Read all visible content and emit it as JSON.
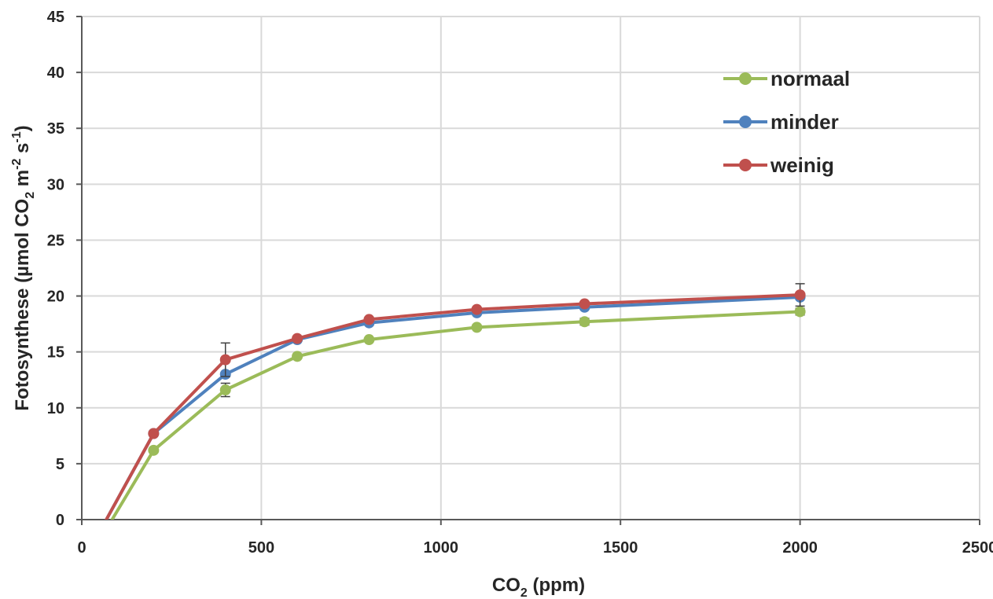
{
  "chart_data": {
    "type": "line",
    "xlabel": "CO",
    "xlabel_sub": "2",
    "xlabel_rest": " (ppm)",
    "ylabel_parts": [
      {
        "t": "Fotosynthese (µmol CO",
        "s": "n"
      },
      {
        "t": "2",
        "s": "sub"
      },
      {
        "t": " m",
        "s": "n"
      },
      {
        "t": "-2",
        "s": "sup"
      },
      {
        "t": " s",
        "s": "n"
      },
      {
        "t": "-1",
        "s": "sup"
      },
      {
        "t": ")",
        "s": "n"
      }
    ],
    "xlim": [
      0,
      2500
    ],
    "ylim": [
      0,
      45
    ],
    "xticks": [
      0,
      500,
      1000,
      1500,
      2000,
      2500
    ],
    "xtick_labels": [
      "0",
      "500",
      "1000",
      "1500",
      "2000",
      "2500"
    ],
    "yticks": [
      0,
      5,
      10,
      15,
      20,
      25,
      30,
      35,
      40,
      45
    ],
    "ytick_labels": [
      "0",
      "5",
      "10",
      "15",
      "20",
      "25",
      "30",
      "35",
      "40",
      "45"
    ],
    "grid": true,
    "legend_position": "top-right",
    "series": [
      {
        "name": "normaal",
        "color": "#9BBB59",
        "x": [
          75,
          200,
          400,
          600,
          800,
          1100,
          1400,
          2000
        ],
        "y": [
          -0.5,
          6.2,
          11.6,
          14.6,
          16.1,
          17.2,
          17.7,
          18.6
        ],
        "err": [
          0,
          0,
          0.6,
          0,
          0,
          0,
          0.3,
          0.3
        ]
      },
      {
        "name": "minder",
        "color": "#4F81BD",
        "x": [
          65,
          200,
          400,
          600,
          800,
          1100,
          1400,
          2000
        ],
        "y": [
          -0.2,
          7.7,
          13.0,
          16.1,
          17.6,
          18.5,
          19.0,
          19.9
        ],
        "err": [
          0,
          0,
          0,
          0,
          0,
          0,
          0,
          0
        ]
      },
      {
        "name": "weinig",
        "color": "#C0504D",
        "x": [
          65,
          200,
          400,
          600,
          800,
          1100,
          1400,
          2000
        ],
        "y": [
          -0.2,
          7.7,
          14.3,
          16.2,
          17.9,
          18.8,
          19.3,
          20.1
        ],
        "err": [
          0,
          0,
          1.5,
          0,
          0,
          0,
          0,
          1.0
        ]
      }
    ]
  }
}
